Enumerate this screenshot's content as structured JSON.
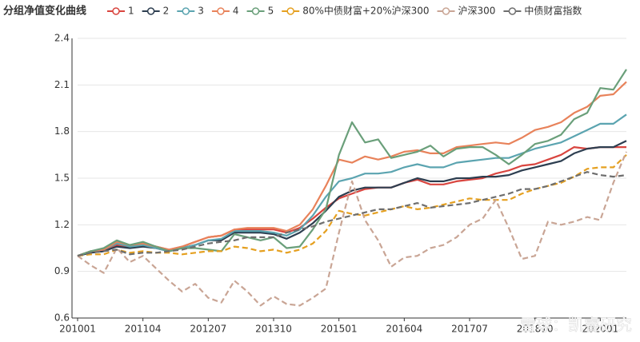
{
  "chart_data": {
    "type": "line",
    "title": "分组净值变化曲线",
    "watermark": "雪球：凯睿研究",
    "categories": [
      "201001",
      null,
      null,
      null,
      null,
      "201104",
      null,
      null,
      null,
      null,
      "201207",
      null,
      null,
      null,
      null,
      "201310",
      null,
      null,
      null,
      null,
      "201501",
      null,
      null,
      null,
      null,
      "201604",
      null,
      null,
      null,
      null,
      "201707",
      null,
      null,
      null,
      null,
      "201810",
      null,
      null,
      null,
      null,
      "202001",
      null,
      null
    ],
    "ylim": [
      0.6,
      2.4
    ],
    "yticks": [
      0.6,
      0.9,
      1.2,
      1.5,
      1.8,
      2.1,
      2.4
    ],
    "grid": true,
    "series": [
      {
        "name": "1",
        "color": "#d9453f",
        "values": [
          1.0,
          1.03,
          1.04,
          1.07,
          1.06,
          1.08,
          1.06,
          1.04,
          1.06,
          1.09,
          1.12,
          1.13,
          1.17,
          1.17,
          1.17,
          1.17,
          1.15,
          1.18,
          1.24,
          1.31,
          1.37,
          1.4,
          1.43,
          1.44,
          1.44,
          1.47,
          1.49,
          1.46,
          1.46,
          1.48,
          1.49,
          1.5,
          1.53,
          1.55,
          1.58,
          1.59,
          1.62,
          1.65,
          1.7,
          1.69,
          1.7,
          1.7,
          1.7
        ]
      },
      {
        "name": "2",
        "color": "#2d3e50",
        "values": [
          1.0,
          1.02,
          1.03,
          1.06,
          1.05,
          1.06,
          1.05,
          1.03,
          1.05,
          1.07,
          1.1,
          1.1,
          1.15,
          1.15,
          1.15,
          1.14,
          1.11,
          1.15,
          1.21,
          1.29,
          1.38,
          1.42,
          1.44,
          1.44,
          1.44,
          1.47,
          1.5,
          1.48,
          1.48,
          1.5,
          1.5,
          1.51,
          1.51,
          1.52,
          1.55,
          1.57,
          1.59,
          1.61,
          1.66,
          1.69,
          1.7,
          1.7,
          1.74
        ]
      },
      {
        "name": "3",
        "color": "#5ba4b0",
        "values": [
          1.0,
          1.03,
          1.04,
          1.08,
          1.06,
          1.07,
          1.05,
          1.03,
          1.05,
          1.07,
          1.1,
          1.11,
          1.16,
          1.16,
          1.16,
          1.15,
          1.13,
          1.17,
          1.26,
          1.38,
          1.48,
          1.5,
          1.53,
          1.53,
          1.54,
          1.57,
          1.59,
          1.57,
          1.57,
          1.6,
          1.61,
          1.62,
          1.63,
          1.63,
          1.66,
          1.69,
          1.71,
          1.73,
          1.77,
          1.81,
          1.85,
          1.85,
          1.91
        ]
      },
      {
        "name": "4",
        "color": "#e8825a",
        "values": [
          1.0,
          1.03,
          1.04,
          1.09,
          1.07,
          1.08,
          1.06,
          1.04,
          1.06,
          1.09,
          1.12,
          1.13,
          1.17,
          1.18,
          1.18,
          1.18,
          1.16,
          1.2,
          1.3,
          1.45,
          1.62,
          1.6,
          1.64,
          1.62,
          1.64,
          1.67,
          1.68,
          1.66,
          1.66,
          1.7,
          1.71,
          1.72,
          1.73,
          1.72,
          1.76,
          1.81,
          1.83,
          1.86,
          1.92,
          1.96,
          2.03,
          2.04,
          2.12
        ]
      },
      {
        "name": "5",
        "color": "#6a9f7a",
        "values": [
          1.0,
          1.03,
          1.05,
          1.1,
          1.07,
          1.09,
          1.06,
          1.03,
          1.05,
          1.05,
          1.04,
          1.03,
          1.14,
          1.12,
          1.1,
          1.12,
          1.05,
          1.06,
          1.17,
          1.3,
          1.65,
          1.86,
          1.73,
          1.75,
          1.63,
          1.65,
          1.67,
          1.71,
          1.64,
          1.69,
          1.7,
          1.7,
          1.65,
          1.59,
          1.65,
          1.72,
          1.74,
          1.78,
          1.88,
          1.92,
          2.08,
          2.07,
          2.2
        ]
      },
      {
        "name": "80%中债财富+20%沪深300",
        "color": "#e5a020",
        "dashed": true,
        "values": [
          1.0,
          1.01,
          1.01,
          1.04,
          1.02,
          1.03,
          1.02,
          1.02,
          1.01,
          1.02,
          1.03,
          1.03,
          1.06,
          1.05,
          1.03,
          1.04,
          1.02,
          1.04,
          1.08,
          1.16,
          1.29,
          1.27,
          1.26,
          1.28,
          1.3,
          1.32,
          1.3,
          1.31,
          1.33,
          1.35,
          1.37,
          1.36,
          1.36,
          1.36,
          1.4,
          1.43,
          1.45,
          1.47,
          1.51,
          1.56,
          1.57,
          1.57,
          1.65
        ]
      },
      {
        "name": "沪深300",
        "color": "#c9a595",
        "dashed": true,
        "values": [
          1.0,
          0.94,
          0.89,
          1.05,
          0.96,
          1.0,
          0.92,
          0.84,
          0.77,
          0.82,
          0.73,
          0.7,
          0.84,
          0.77,
          0.68,
          0.74,
          0.69,
          0.68,
          0.73,
          0.79,
          1.15,
          1.48,
          1.23,
          1.1,
          0.93,
          0.99,
          1.0,
          1.05,
          1.07,
          1.12,
          1.2,
          1.24,
          1.36,
          1.18,
          0.98,
          1.0,
          1.22,
          1.2,
          1.22,
          1.25,
          1.23,
          1.47,
          1.67
        ]
      },
      {
        "name": "中债财富指数",
        "color": "#6e6e6e",
        "dashed": true,
        "values": [
          1.0,
          1.02,
          1.03,
          1.04,
          1.01,
          1.02,
          1.02,
          1.03,
          1.04,
          1.06,
          1.08,
          1.09,
          1.1,
          1.12,
          1.12,
          1.12,
          1.15,
          1.17,
          1.19,
          1.22,
          1.24,
          1.26,
          1.28,
          1.3,
          1.3,
          1.32,
          1.34,
          1.31,
          1.32,
          1.33,
          1.34,
          1.36,
          1.38,
          1.4,
          1.43,
          1.43,
          1.45,
          1.48,
          1.51,
          1.54,
          1.52,
          1.51,
          1.52
        ]
      }
    ]
  }
}
